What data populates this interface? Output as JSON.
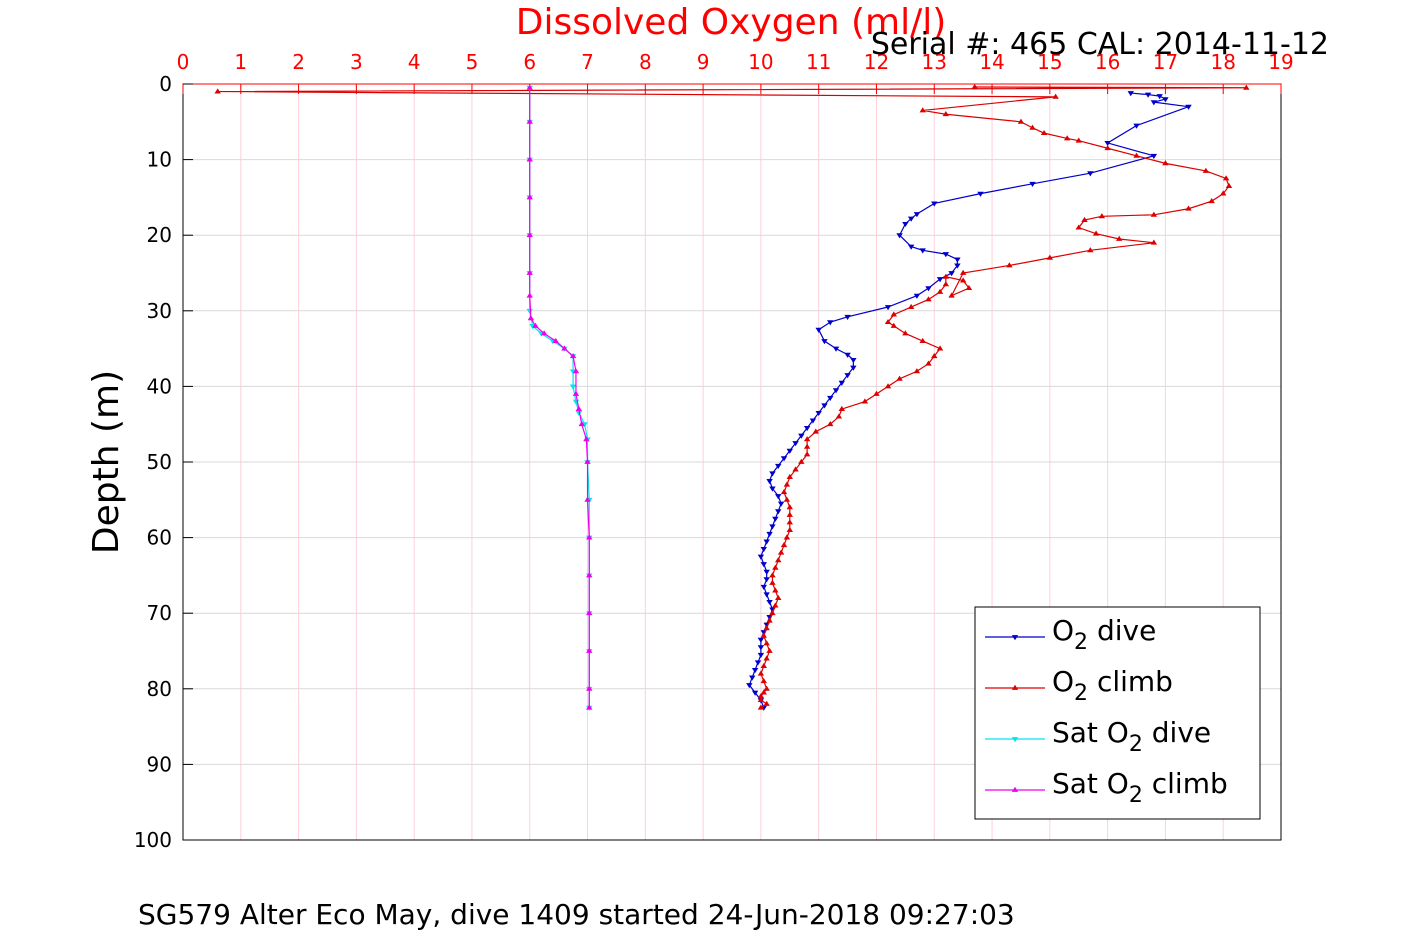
{
  "header": {
    "serial_line": "Serial #: 465  CAL: 2014-11-12"
  },
  "footer": {
    "caption": "SG579 Alter Eco May, dive 1409 started 24-Jun-2018 09:27:03"
  },
  "chart_data": {
    "type": "line",
    "title": "Dissolved Oxygen (ml/l)",
    "xlabel": "",
    "ylabel": "Depth (m)",
    "xlim": [
      0,
      19
    ],
    "ylim": [
      0,
      100
    ],
    "y_reversed": true,
    "x_axis_position": "top",
    "x_ticks": [
      0,
      1,
      2,
      3,
      4,
      5,
      6,
      7,
      8,
      9,
      10,
      11,
      12,
      13,
      14,
      15,
      16,
      17,
      18,
      19
    ],
    "y_ticks": [
      0,
      10,
      20,
      30,
      40,
      50,
      60,
      70,
      80,
      90,
      100
    ],
    "grid": true,
    "legend_position": "bottom-right",
    "colors": {
      "title": "#ff0000",
      "x_axis": "#ff0000",
      "y_axis": "#000000",
      "grid": "#d9d9d9",
      "x_grid": "#ffd0d8"
    },
    "series": [
      {
        "name": "O2 dive",
        "label_main": "O",
        "label_sub": "2",
        "label_rest": " dive",
        "color": "#0000cc",
        "marker": "triangle-down",
        "points": [
          [
            16.4,
            1.2
          ],
          [
            16.7,
            1.4
          ],
          [
            16.9,
            1.6
          ],
          [
            17.0,
            2.0
          ],
          [
            16.8,
            2.4
          ],
          [
            17.4,
            3.0
          ],
          [
            16.5,
            5.5
          ],
          [
            16.0,
            7.8
          ],
          [
            16.8,
            9.5
          ],
          [
            15.7,
            11.8
          ],
          [
            14.7,
            13.2
          ],
          [
            13.8,
            14.5
          ],
          [
            13.0,
            15.8
          ],
          [
            12.7,
            17.2
          ],
          [
            12.6,
            17.8
          ],
          [
            12.5,
            18.5
          ],
          [
            12.4,
            20.0
          ],
          [
            12.6,
            21.5
          ],
          [
            12.8,
            22.0
          ],
          [
            13.2,
            22.5
          ],
          [
            13.4,
            23.2
          ],
          [
            13.4,
            24.0
          ],
          [
            13.3,
            25.0
          ],
          [
            13.1,
            25.8
          ],
          [
            12.9,
            27.0
          ],
          [
            12.7,
            28.0
          ],
          [
            12.2,
            29.5
          ],
          [
            11.5,
            30.8
          ],
          [
            11.2,
            31.5
          ],
          [
            11.0,
            32.5
          ],
          [
            11.1,
            34.0
          ],
          [
            11.3,
            35.0
          ],
          [
            11.5,
            35.8
          ],
          [
            11.6,
            36.5
          ],
          [
            11.6,
            37.5
          ],
          [
            11.5,
            38.5
          ],
          [
            11.4,
            39.5
          ],
          [
            11.3,
            40.5
          ],
          [
            11.2,
            41.5
          ],
          [
            11.1,
            42.5
          ],
          [
            11.0,
            43.5
          ],
          [
            10.9,
            44.5
          ],
          [
            10.8,
            45.5
          ],
          [
            10.7,
            46.5
          ],
          [
            10.6,
            47.5
          ],
          [
            10.5,
            48.5
          ],
          [
            10.4,
            49.5
          ],
          [
            10.3,
            50.5
          ],
          [
            10.2,
            51.5
          ],
          [
            10.15,
            52.5
          ],
          [
            10.2,
            53.5
          ],
          [
            10.3,
            54.5
          ],
          [
            10.35,
            55.5
          ],
          [
            10.3,
            56.5
          ],
          [
            10.25,
            57.5
          ],
          [
            10.2,
            58.5
          ],
          [
            10.15,
            59.5
          ],
          [
            10.1,
            60.5
          ],
          [
            10.05,
            61.5
          ],
          [
            10.0,
            62.5
          ],
          [
            10.05,
            63.5
          ],
          [
            10.1,
            64.5
          ],
          [
            10.1,
            65.5
          ],
          [
            10.05,
            66.5
          ],
          [
            10.1,
            67.5
          ],
          [
            10.15,
            68.5
          ],
          [
            10.2,
            69.5
          ],
          [
            10.15,
            70.5
          ],
          [
            10.1,
            71.5
          ],
          [
            10.05,
            72.5
          ],
          [
            10.0,
            73.5
          ],
          [
            10.0,
            74.5
          ],
          [
            10.0,
            75.5
          ],
          [
            9.95,
            76.5
          ],
          [
            9.9,
            77.5
          ],
          [
            9.85,
            78.5
          ],
          [
            9.8,
            79.5
          ],
          [
            9.9,
            80.5
          ],
          [
            10.0,
            81.5
          ],
          [
            10.05,
            82.5
          ]
        ]
      },
      {
        "name": "O2 climb",
        "label_main": "O",
        "label_sub": "2",
        "label_rest": " climb",
        "color": "#dd0000",
        "marker": "triangle-up",
        "points": [
          [
            10.0,
            82.5
          ],
          [
            10.1,
            82.0
          ],
          [
            10.0,
            81.5
          ],
          [
            10.0,
            81.0
          ],
          [
            10.05,
            80.5
          ],
          [
            10.1,
            80.0
          ],
          [
            10.05,
            79.0
          ],
          [
            10.0,
            78.0
          ],
          [
            10.05,
            77.0
          ],
          [
            10.1,
            76.0
          ],
          [
            10.15,
            75.0
          ],
          [
            10.1,
            74.0
          ],
          [
            10.05,
            73.0
          ],
          [
            10.1,
            72.0
          ],
          [
            10.15,
            71.0
          ],
          [
            10.2,
            70.0
          ],
          [
            10.25,
            69.0
          ],
          [
            10.3,
            68.0
          ],
          [
            10.25,
            67.0
          ],
          [
            10.2,
            66.0
          ],
          [
            10.2,
            65.0
          ],
          [
            10.25,
            64.0
          ],
          [
            10.3,
            63.0
          ],
          [
            10.35,
            62.0
          ],
          [
            10.4,
            61.0
          ],
          [
            10.45,
            60.0
          ],
          [
            10.5,
            59.0
          ],
          [
            10.5,
            58.0
          ],
          [
            10.5,
            57.0
          ],
          [
            10.5,
            56.0
          ],
          [
            10.45,
            55.0
          ],
          [
            10.4,
            54.0
          ],
          [
            10.45,
            53.0
          ],
          [
            10.5,
            52.0
          ],
          [
            10.6,
            51.0
          ],
          [
            10.7,
            50.0
          ],
          [
            10.8,
            49.0
          ],
          [
            10.8,
            48.0
          ],
          [
            10.8,
            47.0
          ],
          [
            10.95,
            46.0
          ],
          [
            11.2,
            45.0
          ],
          [
            11.35,
            44.0
          ],
          [
            11.4,
            43.0
          ],
          [
            11.8,
            42.0
          ],
          [
            12.0,
            41.0
          ],
          [
            12.2,
            40.0
          ],
          [
            12.4,
            39.0
          ],
          [
            12.7,
            38.0
          ],
          [
            12.9,
            37.0
          ],
          [
            13.0,
            36.0
          ],
          [
            13.1,
            35.0
          ],
          [
            12.8,
            34.0
          ],
          [
            12.5,
            33.0
          ],
          [
            12.3,
            32.0
          ],
          [
            12.2,
            31.5
          ],
          [
            12.3,
            30.5
          ],
          [
            12.6,
            29.5
          ],
          [
            12.9,
            28.5
          ],
          [
            13.1,
            27.5
          ],
          [
            13.2,
            26.5
          ],
          [
            13.2,
            25.5
          ],
          [
            13.5,
            26.0
          ],
          [
            13.6,
            27.0
          ],
          [
            13.3,
            28.0
          ],
          [
            13.5,
            25.0
          ],
          [
            14.3,
            24.0
          ],
          [
            15.0,
            23.0
          ],
          [
            15.7,
            22.0
          ],
          [
            16.8,
            21.0
          ],
          [
            16.2,
            20.5
          ],
          [
            15.8,
            19.8
          ],
          [
            15.5,
            19.0
          ],
          [
            15.6,
            18.0
          ],
          [
            15.9,
            17.5
          ],
          [
            16.8,
            17.3
          ],
          [
            17.4,
            16.5
          ],
          [
            17.8,
            15.5
          ],
          [
            18.0,
            14.5
          ],
          [
            18.1,
            13.5
          ],
          [
            18.05,
            12.5
          ],
          [
            17.7,
            11.5
          ],
          [
            17.0,
            10.5
          ],
          [
            16.5,
            9.5
          ],
          [
            16.0,
            8.5
          ],
          [
            15.5,
            7.5
          ],
          [
            15.3,
            7.2
          ],
          [
            14.9,
            6.5
          ],
          [
            14.7,
            5.8
          ],
          [
            14.5,
            5.0
          ],
          [
            13.2,
            4.0
          ],
          [
            12.8,
            3.5
          ],
          [
            15.1,
            1.7
          ],
          [
            0.6,
            1.0
          ],
          [
            18.4,
            0.5
          ],
          [
            13.7,
            0.4
          ]
        ]
      },
      {
        "name": "Sat O2 dive",
        "label_main": "Sat O",
        "label_sub": "2",
        "label_rest": " dive",
        "color": "#00e5ee",
        "marker": "triangle-down",
        "points": [
          [
            6.0,
            0.5
          ],
          [
            6.0,
            5.0
          ],
          [
            6.0,
            10.0
          ],
          [
            6.0,
            15.0
          ],
          [
            6.0,
            20.0
          ],
          [
            6.0,
            25.0
          ],
          [
            6.0,
            30.0
          ],
          [
            6.05,
            32.0
          ],
          [
            6.2,
            33.0
          ],
          [
            6.4,
            34.0
          ],
          [
            6.6,
            35.0
          ],
          [
            6.75,
            36.0
          ],
          [
            6.75,
            38.0
          ],
          [
            6.75,
            40.0
          ],
          [
            6.8,
            42.0
          ],
          [
            6.85,
            43.5
          ],
          [
            6.95,
            45.0
          ],
          [
            7.0,
            47.0
          ],
          [
            7.0,
            50.0
          ],
          [
            7.03,
            55.0
          ],
          [
            7.03,
            60.0
          ],
          [
            7.03,
            65.0
          ],
          [
            7.03,
            70.0
          ],
          [
            7.03,
            75.0
          ],
          [
            7.03,
            80.0
          ],
          [
            7.03,
            82.5
          ]
        ]
      },
      {
        "name": "Sat O2 climb",
        "label_main": "Sat O",
        "label_sub": "2",
        "label_rest": " climb",
        "color": "#ee00ee",
        "marker": "triangle-up",
        "points": [
          [
            7.03,
            82.5
          ],
          [
            7.03,
            80.0
          ],
          [
            7.03,
            75.0
          ],
          [
            7.03,
            70.0
          ],
          [
            7.03,
            65.0
          ],
          [
            7.03,
            60.0
          ],
          [
            7.0,
            55.0
          ],
          [
            7.0,
            50.0
          ],
          [
            6.98,
            47.0
          ],
          [
            6.9,
            45.0
          ],
          [
            6.85,
            43.0
          ],
          [
            6.8,
            41.0
          ],
          [
            6.8,
            38.0
          ],
          [
            6.75,
            36.0
          ],
          [
            6.6,
            35.0
          ],
          [
            6.45,
            34.0
          ],
          [
            6.25,
            33.0
          ],
          [
            6.1,
            32.0
          ],
          [
            6.02,
            31.0
          ],
          [
            6.0,
            28.0
          ],
          [
            6.0,
            25.0
          ],
          [
            6.0,
            20.0
          ],
          [
            6.0,
            15.0
          ],
          [
            6.0,
            10.0
          ],
          [
            6.0,
            5.0
          ],
          [
            6.0,
            0.5
          ]
        ]
      }
    ]
  }
}
